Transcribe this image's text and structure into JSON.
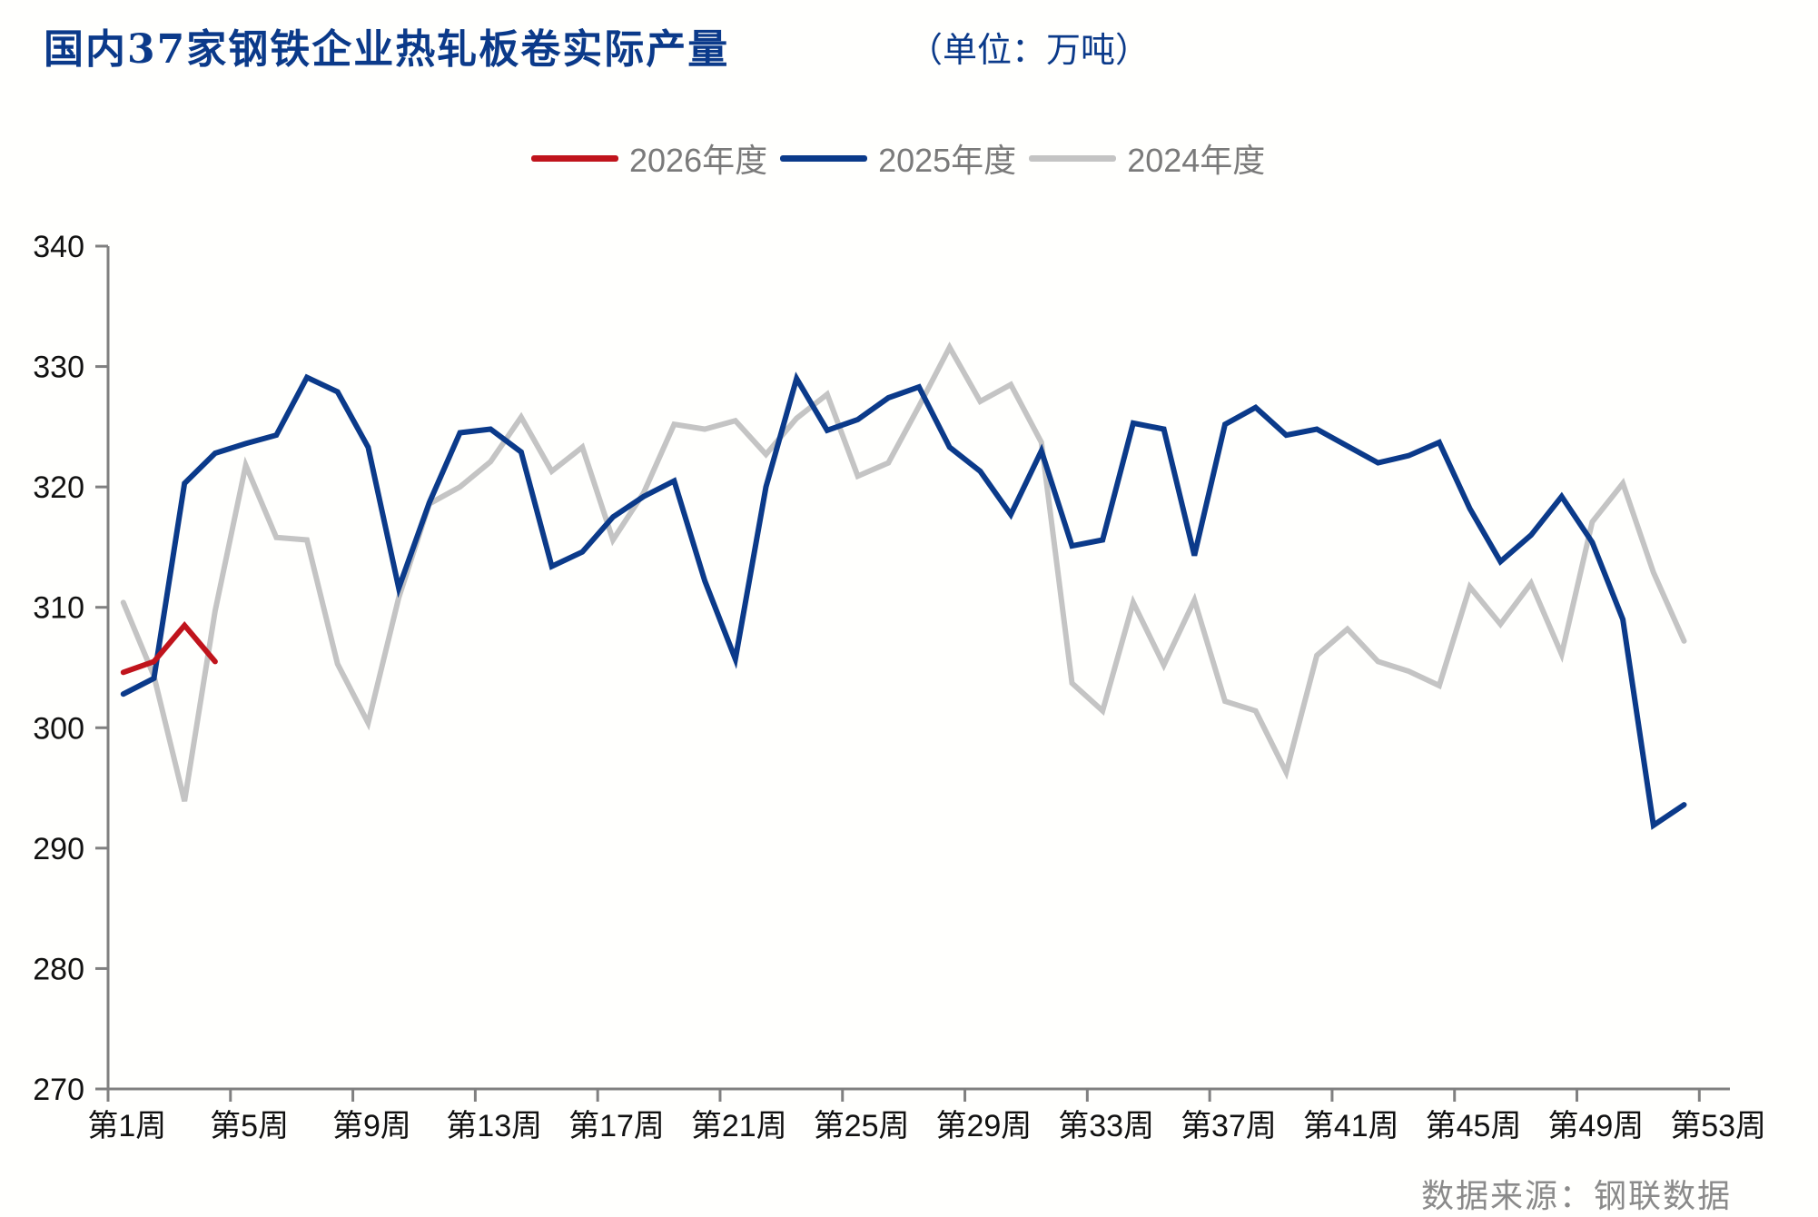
{
  "header": {
    "title": "国内37家钢铁企业热轧板卷实际产量",
    "unit": "（单位：万吨）"
  },
  "footer": {
    "source": "数据来源：钢联数据"
  },
  "colors": {
    "s2026": "#c0141c",
    "s2025": "#0b3a8a",
    "s2024": "#c4c4c4",
    "axis": "#808080",
    "title": "#0b3a8a"
  },
  "chart_data": {
    "type": "line",
    "title": "国内37家钢铁企业热轧板卷实际产量",
    "subtitle": "（单位：万吨）",
    "xlabel": "",
    "ylabel": "万吨",
    "ylim": [
      270,
      340
    ],
    "yticks": [
      270,
      280,
      290,
      300,
      310,
      320,
      330,
      340
    ],
    "x_tick_labels": [
      "第1周",
      "第5周",
      "第9周",
      "第13周",
      "第17周",
      "第21周",
      "第25周",
      "第29周",
      "第33周",
      "第37周",
      "第41周",
      "第45周",
      "第49周",
      "第53周"
    ],
    "x_category_count": 53,
    "grid": false,
    "legend_position": "top",
    "legend": [
      "2026年度",
      "2025年度",
      "2024年度"
    ],
    "x": [
      1,
      2,
      3,
      4,
      5,
      6,
      7,
      8,
      9,
      10,
      11,
      12,
      13,
      14,
      15,
      16,
      17,
      18,
      19,
      20,
      21,
      22,
      23,
      24,
      25,
      26,
      27,
      28,
      29,
      30,
      31,
      32,
      33,
      34,
      35,
      36,
      37,
      38,
      39,
      40,
      41,
      42,
      43,
      44,
      45,
      46,
      47,
      48,
      49,
      50,
      51,
      52
    ],
    "series": [
      {
        "name": "2026年度",
        "color": "#c0141c",
        "values": [
          304.6,
          305.5,
          308.5,
          305.5
        ]
      },
      {
        "name": "2025年度",
        "color": "#0b3a8a",
        "values": [
          302.8,
          304.1,
          320.3,
          322.8,
          323.6,
          324.3,
          329.1,
          327.9,
          323.3,
          311.6,
          318.7,
          324.5,
          324.8,
          322.9,
          313.4,
          314.6,
          317.5,
          319.2,
          320.5,
          312.2,
          305.7,
          320.0,
          329.0,
          324.7,
          325.6,
          327.4,
          328.3,
          323.3,
          321.3,
          317.7,
          323.0,
          315.1,
          315.6,
          325.3,
          324.8,
          314.3,
          325.2,
          326.6,
          324.3,
          324.8,
          323.4,
          322.0,
          322.6,
          323.7,
          318.2,
          313.8,
          316.0,
          319.2,
          315.4,
          309.0,
          291.9,
          293.6
        ]
      },
      {
        "name": "2024年度",
        "color": "#c4c4c4",
        "values": [
          310.4,
          304.3,
          293.9,
          309.7,
          321.8,
          315.8,
          315.6,
          305.3,
          300.4,
          310.8,
          318.6,
          320.0,
          322.1,
          325.8,
          321.3,
          323.3,
          315.6,
          319.5,
          325.2,
          324.8,
          325.5,
          322.7,
          325.7,
          327.7,
          320.9,
          322.0,
          326.7,
          331.6,
          327.1,
          328.5,
          323.7,
          303.7,
          301.4,
          310.4,
          305.2,
          310.6,
          302.2,
          301.4,
          296.3,
          306.0,
          308.2,
          305.5,
          304.7,
          303.5,
          311.7,
          308.6,
          312.0,
          306.1,
          317.1,
          320.3,
          312.9,
          307.2
        ]
      }
    ]
  }
}
